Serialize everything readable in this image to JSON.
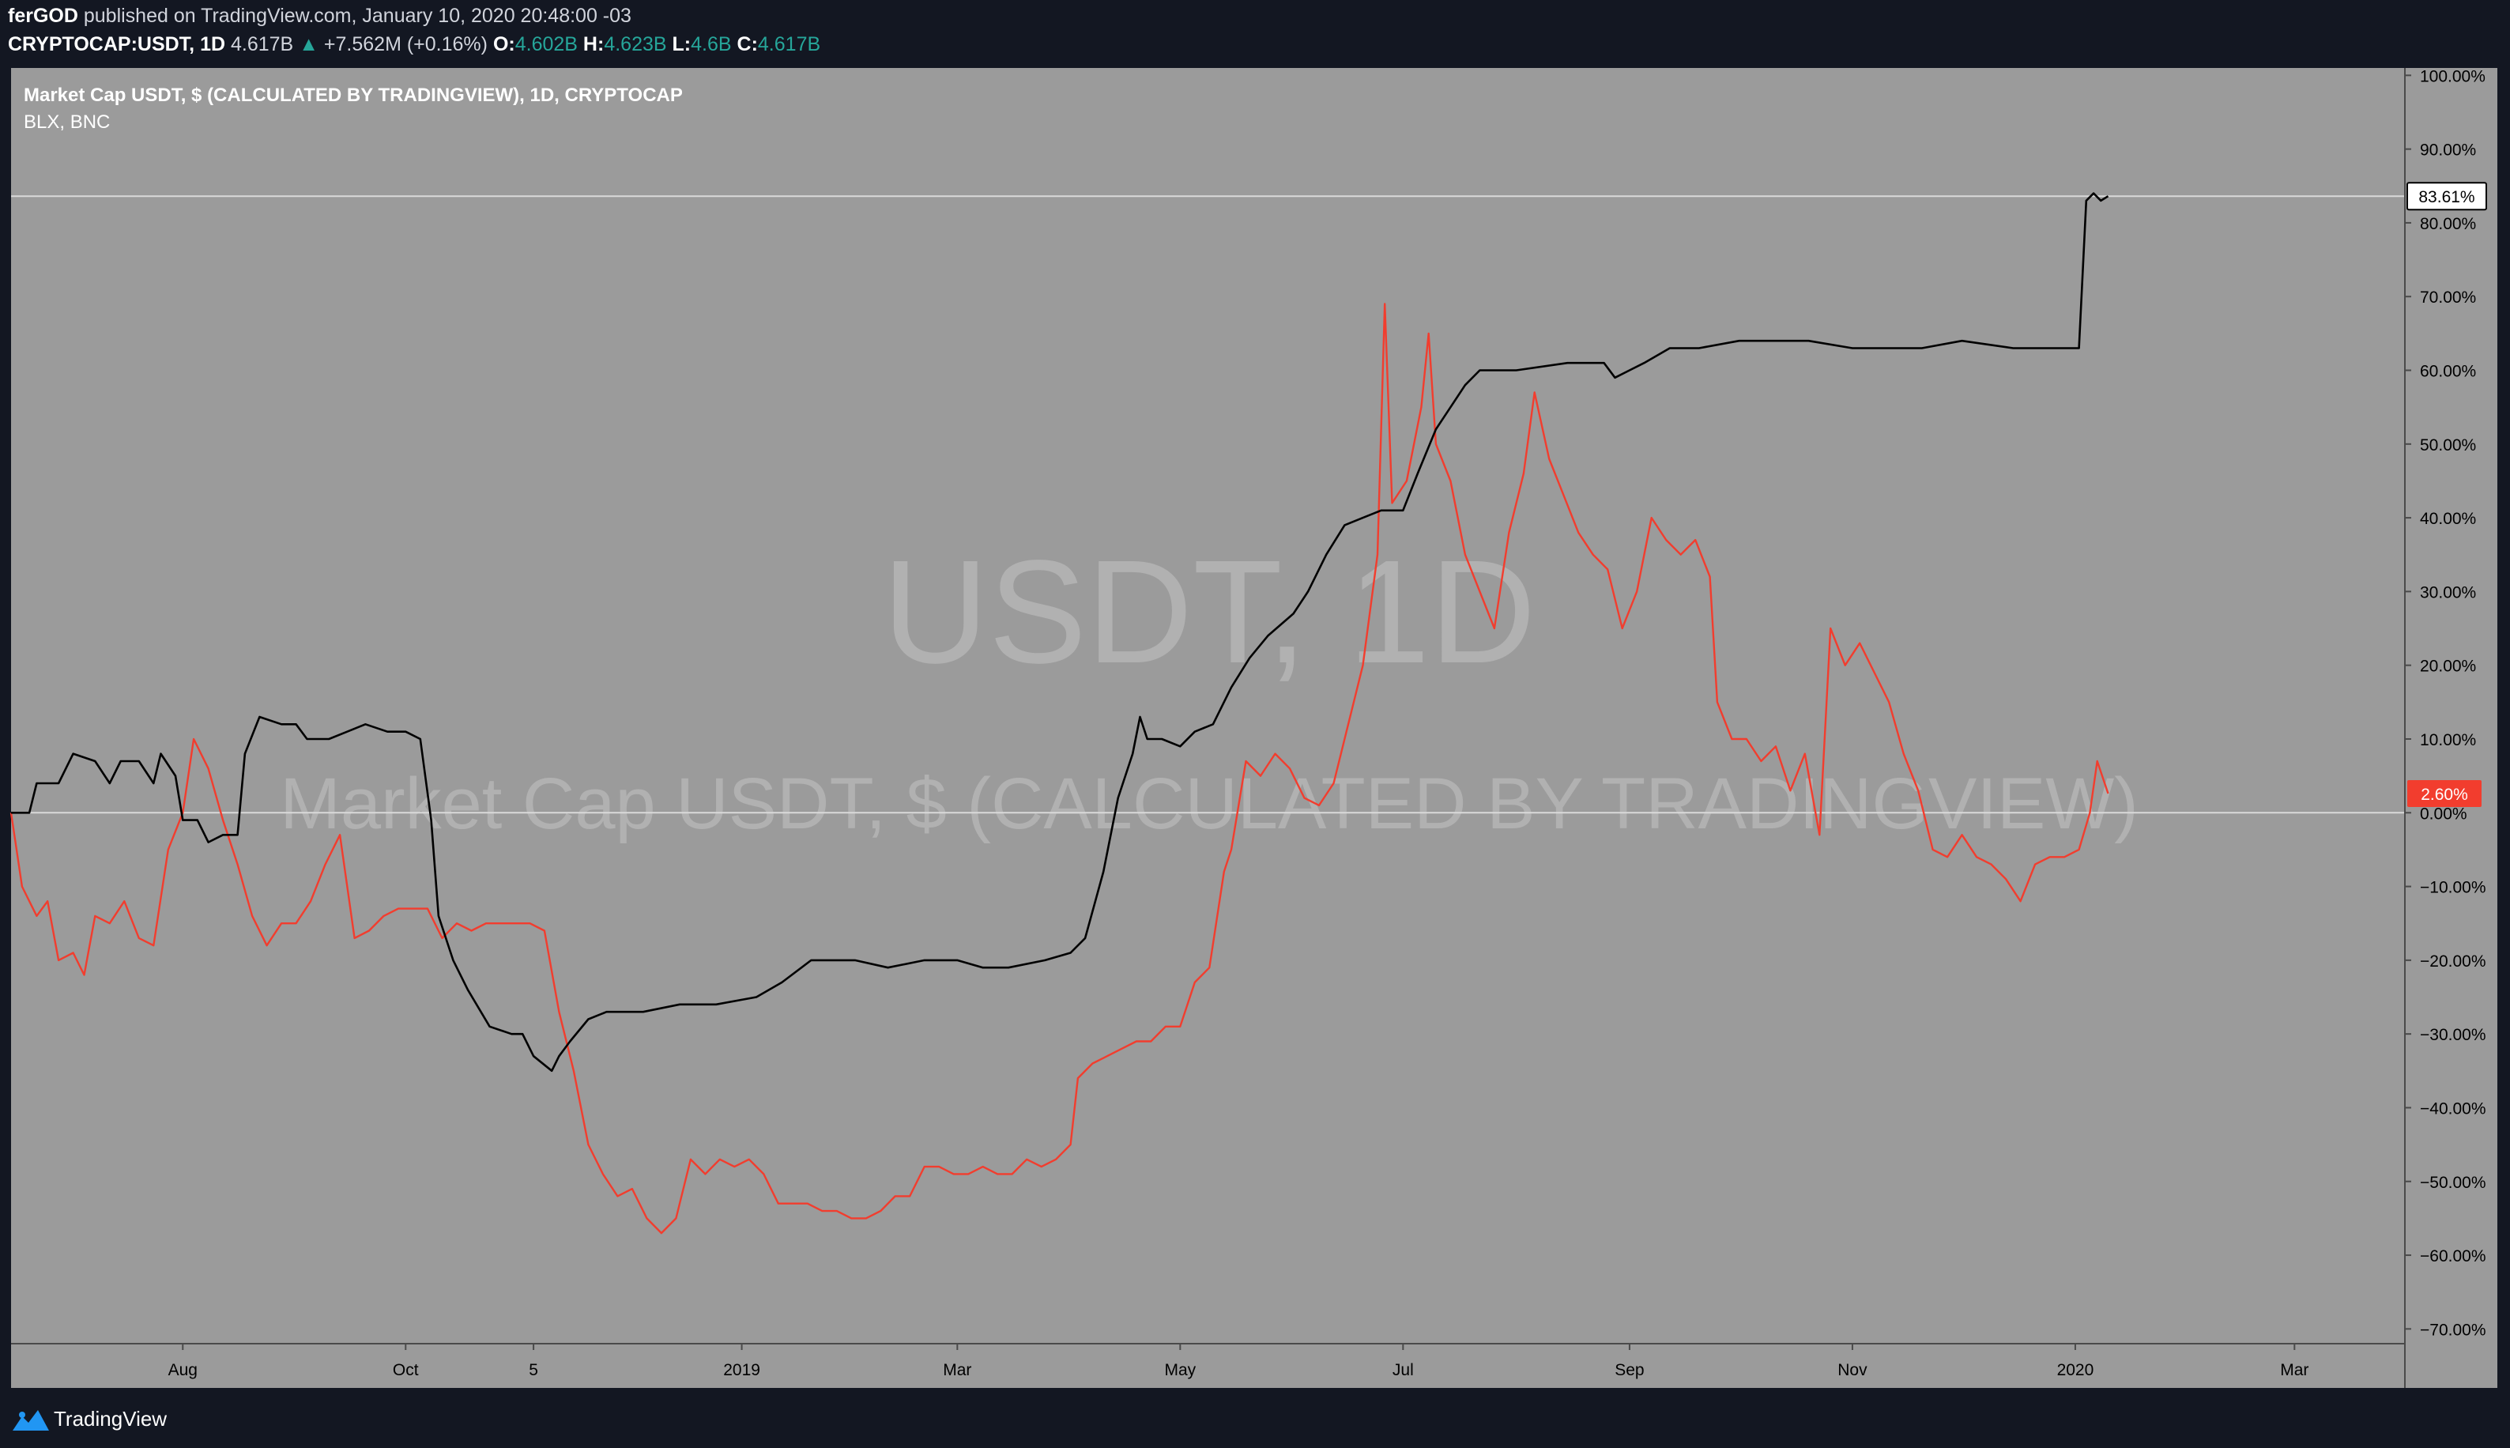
{
  "header": {
    "publisher": "ferGOD",
    "published_text": "published on TradingView.com, January 10, 2020 20:48:00 -03",
    "symbol": "CRYPTOCAP:USDT, 1D",
    "last": "4.617B",
    "change_arrow": "▲",
    "change": "+7.562M (+0.16%)",
    "ohlc": [
      {
        "key": "O:",
        "value": "4.602B"
      },
      {
        "key": "H:",
        "value": "4.623B"
      },
      {
        "key": "L:",
        "value": "4.6B"
      },
      {
        "key": "C:",
        "value": "4.617B"
      }
    ]
  },
  "legend": {
    "main": "Market Cap USDT, $ (CALCULATED BY TRADINGVIEW), 1D, CRYPTOCAP",
    "compare": "BLX, BNC"
  },
  "watermark": {
    "big": "USDT, 1D",
    "sub": "Market Cap USDT, $ (CALCULATED BY TRADINGVIEW)"
  },
  "badges": {
    "usdt_last": "83.61%",
    "blx_last": "2.60%"
  },
  "footer": {
    "brand": "TradingView"
  },
  "colors": {
    "page_bg": "#131722",
    "plot_bg": "#9b9b9b",
    "usdt_line": "#000000",
    "blx_line": "#f23d2e",
    "axis_text": "#000000",
    "badge_red": "#f23d2e"
  },
  "chart_data": {
    "type": "line",
    "yaxis": {
      "min": -72,
      "max": 101,
      "ticks": [
        100,
        90,
        80,
        70,
        60,
        50,
        40,
        30,
        20,
        10,
        0,
        -10,
        -20,
        -30,
        -40,
        -50,
        -60,
        -70
      ],
      "tick_labels": [
        "100.00%",
        "90.00%",
        "80.00%",
        "70.00%",
        "60.00%",
        "50.00%",
        "40.00%",
        "30.00%",
        "20.00%",
        "10.00%",
        "0.00%",
        "−10.00%",
        "−20.00%",
        "−30.00%",
        "−40.00%",
        "−50.00%",
        "−60.00%",
        "−70.00%"
      ],
      "scale": "percent"
    },
    "xaxis": {
      "min": "2018-06-15",
      "max": "2020-03-31",
      "ticks": [
        {
          "date": "2018-08-01",
          "label": "Aug"
        },
        {
          "date": "2018-10-01",
          "label": "Oct"
        },
        {
          "date": "2018-11-05",
          "label": "5"
        },
        {
          "date": "2019-01-01",
          "label": "2019"
        },
        {
          "date": "2019-03-01",
          "label": "Mar"
        },
        {
          "date": "2019-05-01",
          "label": "May"
        },
        {
          "date": "2019-07-01",
          "label": "Jul"
        },
        {
          "date": "2019-09-01",
          "label": "Sep"
        },
        {
          "date": "2019-11-01",
          "label": "Nov"
        },
        {
          "date": "2020-01-01",
          "label": "2020"
        },
        {
          "date": "2020-03-01",
          "label": "Mar"
        }
      ]
    },
    "series": [
      {
        "name": "Market Cap USDT, $ (CALCULATED BY TRADINGVIEW), 1D, CRYPTOCAP",
        "color": "#000000",
        "points": [
          [
            "2018-06-15",
            0
          ],
          [
            "2018-06-20",
            0
          ],
          [
            "2018-06-22",
            4
          ],
          [
            "2018-06-28",
            4
          ],
          [
            "2018-07-02",
            8
          ],
          [
            "2018-07-08",
            7
          ],
          [
            "2018-07-12",
            4
          ],
          [
            "2018-07-15",
            7
          ],
          [
            "2018-07-20",
            7
          ],
          [
            "2018-07-24",
            4
          ],
          [
            "2018-07-26",
            8
          ],
          [
            "2018-07-30",
            5
          ],
          [
            "2018-08-01",
            -1
          ],
          [
            "2018-08-05",
            -1
          ],
          [
            "2018-08-08",
            -4
          ],
          [
            "2018-08-12",
            -3
          ],
          [
            "2018-08-16",
            -3
          ],
          [
            "2018-08-18",
            8
          ],
          [
            "2018-08-22",
            13
          ],
          [
            "2018-08-28",
            12
          ],
          [
            "2018-09-01",
            12
          ],
          [
            "2018-09-04",
            10
          ],
          [
            "2018-09-10",
            10
          ],
          [
            "2018-09-15",
            11
          ],
          [
            "2018-09-20",
            12
          ],
          [
            "2018-09-26",
            11
          ],
          [
            "2018-10-01",
            11
          ],
          [
            "2018-10-05",
            10
          ],
          [
            "2018-10-08",
            -1
          ],
          [
            "2018-10-10",
            -14
          ],
          [
            "2018-10-14",
            -20
          ],
          [
            "2018-10-18",
            -24
          ],
          [
            "2018-10-24",
            -29
          ],
          [
            "2018-10-30",
            -30
          ],
          [
            "2018-11-02",
            -30
          ],
          [
            "2018-11-05",
            -33
          ],
          [
            "2018-11-10",
            -35
          ],
          [
            "2018-11-12",
            -33
          ],
          [
            "2018-11-15",
            -31
          ],
          [
            "2018-11-20",
            -28
          ],
          [
            "2018-11-25",
            -27
          ],
          [
            "2018-12-05",
            -27
          ],
          [
            "2018-12-15",
            -26
          ],
          [
            "2018-12-25",
            -26
          ],
          [
            "2019-01-05",
            -25
          ],
          [
            "2019-01-12",
            -23
          ],
          [
            "2019-01-20",
            -20
          ],
          [
            "2019-02-01",
            -20
          ],
          [
            "2019-02-10",
            -21
          ],
          [
            "2019-02-20",
            -20
          ],
          [
            "2019-03-01",
            -20
          ],
          [
            "2019-03-08",
            -21
          ],
          [
            "2019-03-15",
            -21
          ],
          [
            "2019-03-25",
            -20
          ],
          [
            "2019-04-01",
            -19
          ],
          [
            "2019-04-05",
            -17
          ],
          [
            "2019-04-10",
            -8
          ],
          [
            "2019-04-14",
            2
          ],
          [
            "2019-04-18",
            8
          ],
          [
            "2019-04-20",
            13
          ],
          [
            "2019-04-22",
            10
          ],
          [
            "2019-04-26",
            10
          ],
          [
            "2019-05-01",
            9
          ],
          [
            "2019-05-05",
            11
          ],
          [
            "2019-05-10",
            12
          ],
          [
            "2019-05-15",
            17
          ],
          [
            "2019-05-20",
            21
          ],
          [
            "2019-05-25",
            24
          ],
          [
            "2019-06-01",
            27
          ],
          [
            "2019-06-05",
            30
          ],
          [
            "2019-06-10",
            35
          ],
          [
            "2019-06-15",
            39
          ],
          [
            "2019-06-20",
            40
          ],
          [
            "2019-06-25",
            41
          ],
          [
            "2019-07-01",
            41
          ],
          [
            "2019-07-05",
            46
          ],
          [
            "2019-07-10",
            52
          ],
          [
            "2019-07-14",
            55
          ],
          [
            "2019-07-18",
            58
          ],
          [
            "2019-07-22",
            60
          ],
          [
            "2019-08-01",
            60
          ],
          [
            "2019-08-15",
            61
          ],
          [
            "2019-08-25",
            61
          ],
          [
            "2019-08-28",
            59
          ],
          [
            "2019-09-01",
            60
          ],
          [
            "2019-09-05",
            61
          ],
          [
            "2019-09-12",
            63
          ],
          [
            "2019-09-20",
            63
          ],
          [
            "2019-10-01",
            64
          ],
          [
            "2019-10-20",
            64
          ],
          [
            "2019-11-01",
            63
          ],
          [
            "2019-11-20",
            63
          ],
          [
            "2019-12-01",
            64
          ],
          [
            "2019-12-15",
            63
          ],
          [
            "2019-12-28",
            63
          ],
          [
            "2020-01-02",
            63
          ],
          [
            "2020-01-04",
            83
          ],
          [
            "2020-01-06",
            84
          ],
          [
            "2020-01-08",
            83
          ],
          [
            "2020-01-10",
            83.61
          ]
        ]
      },
      {
        "name": "BLX, BNC",
        "color": "#f23d2e",
        "points": [
          [
            "2018-06-15",
            0
          ],
          [
            "2018-06-18",
            -10
          ],
          [
            "2018-06-22",
            -14
          ],
          [
            "2018-06-25",
            -12
          ],
          [
            "2018-06-28",
            -20
          ],
          [
            "2018-07-02",
            -19
          ],
          [
            "2018-07-05",
            -22
          ],
          [
            "2018-07-08",
            -14
          ],
          [
            "2018-07-12",
            -15
          ],
          [
            "2018-07-16",
            -12
          ],
          [
            "2018-07-20",
            -17
          ],
          [
            "2018-07-24",
            -18
          ],
          [
            "2018-07-28",
            -5
          ],
          [
            "2018-08-01",
            0
          ],
          [
            "2018-08-04",
            10
          ],
          [
            "2018-08-08",
            6
          ],
          [
            "2018-08-12",
            -1
          ],
          [
            "2018-08-16",
            -7
          ],
          [
            "2018-08-20",
            -14
          ],
          [
            "2018-08-24",
            -18
          ],
          [
            "2018-08-28",
            -15
          ],
          [
            "2018-09-01",
            -15
          ],
          [
            "2018-09-05",
            -12
          ],
          [
            "2018-09-09",
            -7
          ],
          [
            "2018-09-13",
            -3
          ],
          [
            "2018-09-17",
            -17
          ],
          [
            "2018-09-21",
            -16
          ],
          [
            "2018-09-25",
            -14
          ],
          [
            "2018-09-29",
            -13
          ],
          [
            "2018-10-03",
            -13
          ],
          [
            "2018-10-07",
            -13
          ],
          [
            "2018-10-11",
            -17
          ],
          [
            "2018-10-15",
            -15
          ],
          [
            "2018-10-19",
            -16
          ],
          [
            "2018-10-23",
            -15
          ],
          [
            "2018-10-27",
            -15
          ],
          [
            "2018-10-31",
            -15
          ],
          [
            "2018-11-04",
            -15
          ],
          [
            "2018-11-08",
            -16
          ],
          [
            "2018-11-12",
            -27
          ],
          [
            "2018-11-16",
            -35
          ],
          [
            "2018-11-20",
            -45
          ],
          [
            "2018-11-24",
            -49
          ],
          [
            "2018-11-28",
            -52
          ],
          [
            "2018-12-02",
            -51
          ],
          [
            "2018-12-06",
            -55
          ],
          [
            "2018-12-10",
            -57
          ],
          [
            "2018-12-14",
            -55
          ],
          [
            "2018-12-18",
            -47
          ],
          [
            "2018-12-22",
            -49
          ],
          [
            "2018-12-26",
            -47
          ],
          [
            "2018-12-30",
            -48
          ],
          [
            "2019-01-03",
            -47
          ],
          [
            "2019-01-07",
            -49
          ],
          [
            "2019-01-11",
            -53
          ],
          [
            "2019-01-15",
            -53
          ],
          [
            "2019-01-19",
            -53
          ],
          [
            "2019-01-23",
            -54
          ],
          [
            "2019-01-27",
            -54
          ],
          [
            "2019-01-31",
            -55
          ],
          [
            "2019-02-04",
            -55
          ],
          [
            "2019-02-08",
            -54
          ],
          [
            "2019-02-12",
            -52
          ],
          [
            "2019-02-16",
            -52
          ],
          [
            "2019-02-20",
            -48
          ],
          [
            "2019-02-24",
            -48
          ],
          [
            "2019-02-28",
            -49
          ],
          [
            "2019-03-04",
            -49
          ],
          [
            "2019-03-08",
            -48
          ],
          [
            "2019-03-12",
            -49
          ],
          [
            "2019-03-16",
            -49
          ],
          [
            "2019-03-20",
            -47
          ],
          [
            "2019-03-24",
            -48
          ],
          [
            "2019-03-28",
            -47
          ],
          [
            "2019-04-01",
            -45
          ],
          [
            "2019-04-03",
            -36
          ],
          [
            "2019-04-07",
            -34
          ],
          [
            "2019-04-11",
            -33
          ],
          [
            "2019-04-15",
            -32
          ],
          [
            "2019-04-19",
            -31
          ],
          [
            "2019-04-23",
            -31
          ],
          [
            "2019-04-27",
            -29
          ],
          [
            "2019-05-01",
            -29
          ],
          [
            "2019-05-05",
            -23
          ],
          [
            "2019-05-09",
            -21
          ],
          [
            "2019-05-13",
            -8
          ],
          [
            "2019-05-15",
            -5
          ],
          [
            "2019-05-19",
            7
          ],
          [
            "2019-05-23",
            5
          ],
          [
            "2019-05-27",
            8
          ],
          [
            "2019-05-31",
            6
          ],
          [
            "2019-06-04",
            2
          ],
          [
            "2019-06-08",
            1
          ],
          [
            "2019-06-12",
            4
          ],
          [
            "2019-06-16",
            12
          ],
          [
            "2019-06-20",
            20
          ],
          [
            "2019-06-24",
            35
          ],
          [
            "2019-06-26",
            69
          ],
          [
            "2019-06-28",
            42
          ],
          [
            "2019-07-02",
            45
          ],
          [
            "2019-07-06",
            55
          ],
          [
            "2019-07-08",
            65
          ],
          [
            "2019-07-10",
            50
          ],
          [
            "2019-07-14",
            45
          ],
          [
            "2019-07-18",
            35
          ],
          [
            "2019-07-22",
            30
          ],
          [
            "2019-07-26",
            25
          ],
          [
            "2019-07-30",
            38
          ],
          [
            "2019-08-03",
            46
          ],
          [
            "2019-08-06",
            57
          ],
          [
            "2019-08-10",
            48
          ],
          [
            "2019-08-14",
            43
          ],
          [
            "2019-08-18",
            38
          ],
          [
            "2019-08-22",
            35
          ],
          [
            "2019-08-26",
            33
          ],
          [
            "2019-08-30",
            25
          ],
          [
            "2019-09-03",
            30
          ],
          [
            "2019-09-07",
            40
          ],
          [
            "2019-09-11",
            37
          ],
          [
            "2019-09-15",
            35
          ],
          [
            "2019-09-19",
            37
          ],
          [
            "2019-09-23",
            32
          ],
          [
            "2019-09-25",
            15
          ],
          [
            "2019-09-29",
            10
          ],
          [
            "2019-10-03",
            10
          ],
          [
            "2019-10-07",
            7
          ],
          [
            "2019-10-11",
            9
          ],
          [
            "2019-10-15",
            3
          ],
          [
            "2019-10-19",
            8
          ],
          [
            "2019-10-23",
            -3
          ],
          [
            "2019-10-26",
            25
          ],
          [
            "2019-10-30",
            20
          ],
          [
            "2019-11-03",
            23
          ],
          [
            "2019-11-07",
            19
          ],
          [
            "2019-11-11",
            15
          ],
          [
            "2019-11-15",
            8
          ],
          [
            "2019-11-19",
            3
          ],
          [
            "2019-11-23",
            -5
          ],
          [
            "2019-11-27",
            -6
          ],
          [
            "2019-12-01",
            -3
          ],
          [
            "2019-12-05",
            -6
          ],
          [
            "2019-12-09",
            -7
          ],
          [
            "2019-12-13",
            -9
          ],
          [
            "2019-12-17",
            -12
          ],
          [
            "2019-12-21",
            -7
          ],
          [
            "2019-12-25",
            -6
          ],
          [
            "2019-12-29",
            -6
          ],
          [
            "2020-01-02",
            -5
          ],
          [
            "2020-01-05",
            0
          ],
          [
            "2020-01-07",
            7
          ],
          [
            "2020-01-10",
            2.6
          ]
        ]
      }
    ],
    "last_value_lines": [
      83.61,
      0
    ],
    "grid": false,
    "legend": "top-left"
  }
}
